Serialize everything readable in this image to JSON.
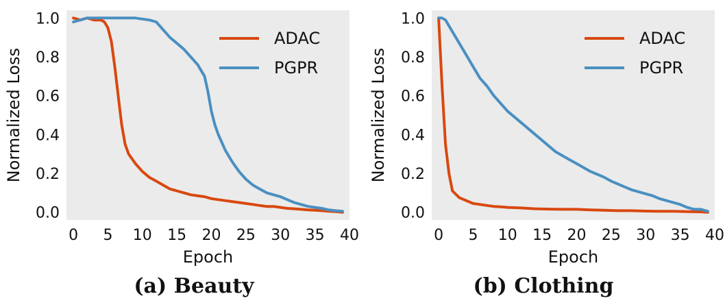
{
  "colors": {
    "ADAC": "#d9480f",
    "PGPR": "#4a8fc1",
    "plot_bg": "#ebebeb"
  },
  "chart_data": [
    {
      "type": "line",
      "caption": "(a) Beauty",
      "xlabel": "Epoch",
      "ylabel": "Normalized Loss",
      "xlim": [
        -1,
        40
      ],
      "ylim": [
        -0.04,
        1.04
      ],
      "xticks": [
        0,
        5,
        10,
        15,
        20,
        25,
        30,
        35,
        40
      ],
      "yticks": [
        "0.0",
        "0.2",
        "0.4",
        "0.6",
        "0.8",
        "1.0"
      ],
      "ytick_values": [
        0.0,
        0.2,
        0.4,
        0.6,
        0.8,
        1.0
      ],
      "grid": false,
      "legend": "top-right",
      "series": [
        {
          "name": "ADAC",
          "x": [
            0,
            1,
            2,
            3,
            4,
            4.5,
            5,
            5.5,
            6,
            6.5,
            7,
            7.5,
            8,
            9,
            10,
            11,
            12,
            13,
            14,
            15,
            16,
            17,
            18,
            19,
            20,
            21,
            22,
            23,
            24,
            25,
            26,
            27,
            28,
            29,
            30,
            31,
            32,
            33,
            34,
            35,
            36,
            37,
            38,
            39
          ],
          "y": [
            1.0,
            0.99,
            1.0,
            0.99,
            0.99,
            0.98,
            0.95,
            0.88,
            0.75,
            0.6,
            0.45,
            0.35,
            0.3,
            0.25,
            0.21,
            0.18,
            0.16,
            0.14,
            0.12,
            0.11,
            0.1,
            0.09,
            0.085,
            0.08,
            0.07,
            0.065,
            0.06,
            0.055,
            0.05,
            0.045,
            0.04,
            0.035,
            0.03,
            0.03,
            0.025,
            0.02,
            0.018,
            0.015,
            0.012,
            0.01,
            0.008,
            0.005,
            0.003,
            0.0
          ]
        },
        {
          "name": "PGPR",
          "x": [
            0,
            1,
            2,
            3,
            4,
            5,
            6,
            7,
            8,
            9,
            10,
            11,
            12,
            13,
            14,
            15,
            16,
            17,
            18,
            19,
            19.5,
            20,
            20.5,
            21,
            22,
            23,
            24,
            25,
            26,
            27,
            28,
            29,
            30,
            31,
            32,
            33,
            34,
            35,
            36,
            37,
            38,
            39
          ],
          "y": [
            0.98,
            0.99,
            1.0,
            1.0,
            1.0,
            1.0,
            1.0,
            1.0,
            1.0,
            1.0,
            0.995,
            0.99,
            0.98,
            0.94,
            0.9,
            0.87,
            0.84,
            0.8,
            0.76,
            0.7,
            0.62,
            0.52,
            0.45,
            0.4,
            0.32,
            0.26,
            0.21,
            0.17,
            0.14,
            0.12,
            0.1,
            0.09,
            0.08,
            0.065,
            0.05,
            0.04,
            0.03,
            0.025,
            0.02,
            0.012,
            0.008,
            0.005
          ]
        }
      ]
    },
    {
      "type": "line",
      "caption": "(b) Clothing",
      "xlabel": "Epoch",
      "ylabel": "Normalized Loss",
      "xlim": [
        -1,
        40
      ],
      "ylim": [
        -0.04,
        1.04
      ],
      "xticks": [
        0,
        5,
        10,
        15,
        20,
        25,
        30,
        35,
        40
      ],
      "yticks": [
        "0.0",
        "0.2",
        "0.4",
        "0.6",
        "0.8",
        "1.0"
      ],
      "ytick_values": [
        0.0,
        0.2,
        0.4,
        0.6,
        0.8,
        1.0
      ],
      "grid": false,
      "legend": "top-right",
      "series": [
        {
          "name": "ADAC",
          "x": [
            0,
            0.5,
            1,
            1.5,
            2,
            3,
            4,
            5,
            6,
            7,
            8,
            9,
            10,
            12,
            14,
            16,
            18,
            20,
            22,
            24,
            26,
            28,
            30,
            32,
            34,
            36,
            38,
            39
          ],
          "y": [
            1.0,
            0.65,
            0.35,
            0.2,
            0.11,
            0.075,
            0.06,
            0.045,
            0.04,
            0.035,
            0.03,
            0.028,
            0.025,
            0.022,
            0.018,
            0.016,
            0.015,
            0.015,
            0.012,
            0.01,
            0.008,
            0.008,
            0.006,
            0.005,
            0.005,
            0.003,
            0.002,
            0.0
          ]
        },
        {
          "name": "PGPR",
          "x": [
            0,
            0.5,
            1,
            2,
            3,
            4,
            5,
            6,
            7,
            8,
            9,
            10,
            11,
            12,
            13,
            14,
            15,
            16,
            17,
            18,
            19,
            20,
            21,
            22,
            23,
            24,
            25,
            26,
            27,
            28,
            29,
            30,
            31,
            32,
            33,
            34,
            35,
            36,
            37,
            38,
            39
          ],
          "y": [
            1.0,
            1.0,
            0.99,
            0.93,
            0.87,
            0.81,
            0.75,
            0.69,
            0.65,
            0.6,
            0.56,
            0.52,
            0.49,
            0.46,
            0.43,
            0.4,
            0.37,
            0.34,
            0.31,
            0.29,
            0.27,
            0.25,
            0.23,
            0.21,
            0.195,
            0.18,
            0.16,
            0.145,
            0.13,
            0.115,
            0.105,
            0.095,
            0.085,
            0.07,
            0.06,
            0.05,
            0.04,
            0.025,
            0.015,
            0.015,
            0.005
          ]
        }
      ]
    }
  ]
}
